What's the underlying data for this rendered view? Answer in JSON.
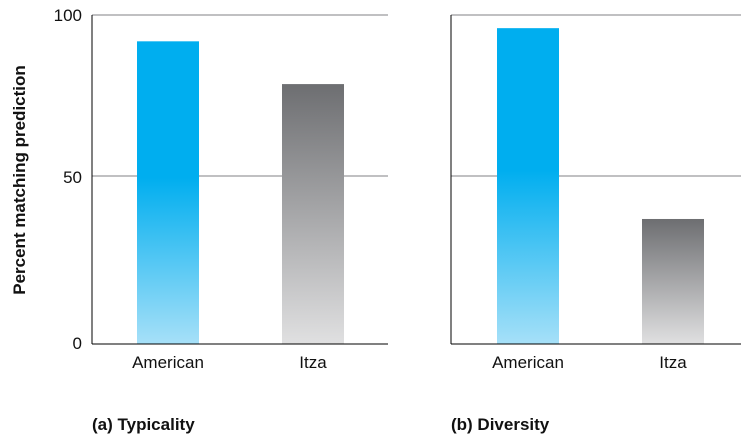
{
  "chart_data": [
    {
      "type": "bar",
      "title": "(a) Typicality",
      "categories": [
        "American",
        "Itza"
      ],
      "values": [
        92,
        79
      ],
      "ylabel": "Percent matching prediction",
      "ylim": [
        0,
        100
      ],
      "yticks": [
        0,
        50,
        100
      ],
      "grid": true,
      "bar_colors": [
        "#00aeef",
        "#6d6e71"
      ]
    },
    {
      "type": "bar",
      "title": "(b) Diversity",
      "categories": [
        "American",
        "Itza"
      ],
      "values": [
        96,
        38
      ],
      "ylim": [
        0,
        100
      ],
      "grid": true,
      "bar_colors": [
        "#00aeef",
        "#6d6e71"
      ]
    }
  ],
  "colors": {
    "american_top": "#00aeef",
    "american_bottom": "#a6e0f8",
    "itza_top": "#6d6e71",
    "itza_bottom": "#e0e0e1",
    "gridline": "#808285",
    "axis": "#000000"
  }
}
